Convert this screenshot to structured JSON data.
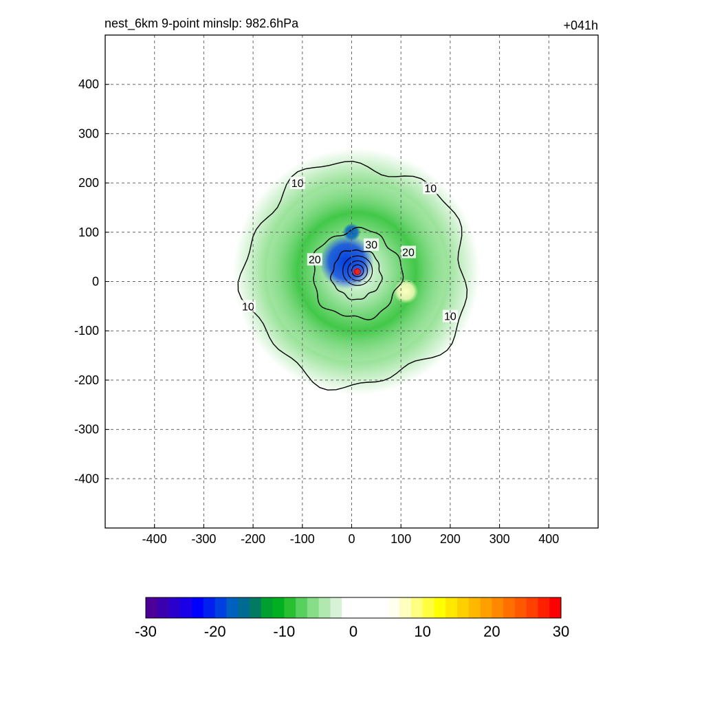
{
  "chart_data": {
    "type": "heatmap",
    "title": "nest_6km  9-point minslp: 982.6hPa",
    "time_label": "+041h",
    "xlabel": "",
    "ylabel": "",
    "xlim": [
      -500,
      500
    ],
    "ylim": [
      -500,
      500
    ],
    "x_ticks": [
      -400,
      -300,
      -200,
      -100,
      0,
      100,
      200,
      300,
      400
    ],
    "y_ticks": [
      -400,
      -300,
      -200,
      -100,
      0,
      100,
      200,
      300,
      400
    ],
    "grid": true,
    "fill_field": {
      "description_source": "color-filled anomaly field",
      "min": -30,
      "max": 30,
      "features": [
        {
          "kind": "ring",
          "center": [
            10,
            20
          ],
          "r_inner": 120,
          "r_outer": 250,
          "value": -6
        },
        {
          "kind": "ring",
          "center": [
            10,
            20
          ],
          "r_inner": 60,
          "r_outer": 180,
          "value": -9
        },
        {
          "kind": "blob",
          "center": [
            -10,
            40
          ],
          "r": 55,
          "value": -20
        },
        {
          "kind": "blob",
          "center": [
            0,
            100
          ],
          "r": 18,
          "value": -18
        },
        {
          "kind": "blob",
          "center": [
            110,
            -20
          ],
          "r": 25,
          "value": 8
        },
        {
          "kind": "blob",
          "center": [
            10,
            20
          ],
          "r": 8,
          "value": 28
        }
      ]
    },
    "contours": [
      {
        "label": "10",
        "radius": 225,
        "label_positions": [
          [
            -110,
            200
          ],
          [
            160,
            190
          ],
          [
            -210,
            -50
          ],
          [
            200,
            -70
          ]
        ]
      },
      {
        "label": "20",
        "radius": 90,
        "label_positions": [
          [
            -75,
            45
          ],
          [
            115,
            60
          ]
        ]
      },
      {
        "label": "30",
        "radius": 50,
        "label_positions": [
          [
            40,
            75
          ]
        ]
      }
    ],
    "colorbar": {
      "min": -30,
      "max": 30,
      "tick_labels": [
        "-30",
        "-20",
        "-10",
        "0",
        "10",
        "20",
        "30"
      ],
      "tick_values": [
        -30,
        -20,
        -10,
        0,
        10,
        20,
        30
      ],
      "colors": [
        "#4b0097",
        "#3a00b0",
        "#2a00cc",
        "#1a00e6",
        "#0000ff",
        "#0020f0",
        "#0040e0",
        "#0060c0",
        "#006a90",
        "#007a60",
        "#00a030",
        "#00b020",
        "#28c030",
        "#58d060",
        "#88dd88",
        "#b0e8b0",
        "#d8f2d8",
        "#ffffff",
        "#ffffff",
        "#ffffff",
        "#ffffff",
        "#fffff0",
        "#ffffc0",
        "#ffff80",
        "#ffff40",
        "#ffff00",
        "#ffe800",
        "#ffd000",
        "#ffb800",
        "#ffa000",
        "#ff8800",
        "#ff7000",
        "#ff5800",
        "#ff4000",
        "#ff2000",
        "#ff0000"
      ]
    }
  }
}
